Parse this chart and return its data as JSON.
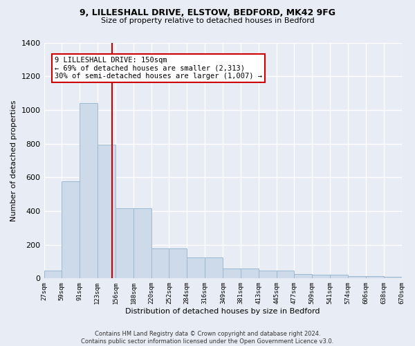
{
  "title_line1": "9, LILLESHALL DRIVE, ELSTOW, BEDFORD, MK42 9FG",
  "title_line2": "Size of property relative to detached houses in Bedford",
  "xlabel": "Distribution of detached houses by size in Bedford",
  "ylabel": "Number of detached properties",
  "footer_line1": "Contains HM Land Registry data © Crown copyright and database right 2024.",
  "footer_line2": "Contains public sector information licensed under the Open Government Licence v3.0.",
  "annotation_line1": "9 LILLESHALL DRIVE: 150sqm",
  "annotation_line2": "← 69% of detached houses are smaller (2,313)",
  "annotation_line3": "30% of semi-detached houses are larger (1,007) →",
  "property_size": 150,
  "bar_color": "#cddaea",
  "bar_edgecolor": "#9db8cf",
  "redline_color": "#cc0000",
  "annotation_boxcolor": "#ffffff",
  "annotation_boxedgecolor": "#cc0000",
  "background_color": "#e8edf5",
  "grid_color": "#ffffff",
  "bin_edges": [
    27,
    59,
    91,
    123,
    156,
    188,
    220,
    252,
    284,
    316,
    349,
    381,
    413,
    445,
    477,
    509,
    541,
    574,
    606,
    638,
    670
  ],
  "bar_heights": [
    47,
    575,
    1040,
    795,
    415,
    415,
    180,
    180,
    125,
    125,
    60,
    60,
    47,
    47,
    25,
    22,
    22,
    12,
    12,
    10
  ],
  "ylim": [
    0,
    1400
  ],
  "yticks": [
    0,
    200,
    400,
    600,
    800,
    1000,
    1200,
    1400
  ]
}
